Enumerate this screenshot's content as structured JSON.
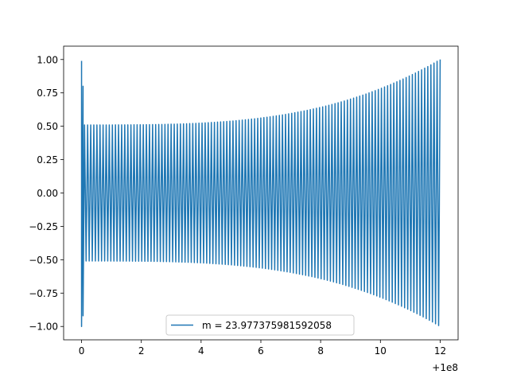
{
  "chart_data": {
    "type": "line",
    "x_offset_label": "+1e8",
    "xlim": [
      -0.6,
      12.6
    ],
    "ylim": [
      -1.1,
      1.1
    ],
    "x_ticks": [
      0,
      2,
      4,
      6,
      8,
      10,
      12
    ],
    "x_tick_labels": [
      "0",
      "2",
      "4",
      "6",
      "8",
      "10",
      "12"
    ],
    "y_ticks": [
      -1.0,
      -0.75,
      -0.5,
      -0.25,
      0.0,
      0.25,
      0.5,
      0.75,
      1.0
    ],
    "y_tick_labels": [
      "−1.00",
      "−0.75",
      "−0.50",
      "−0.25",
      "0.00",
      "0.25",
      "0.50",
      "0.75",
      "1.00"
    ],
    "grid": false,
    "legend_position": "lower center",
    "series": [
      {
        "name": "m = 23.977375981592058",
        "color": "#1f77b4",
        "start_amplitude": 0.51,
        "end_amplitude": 1.0,
        "cycles": 230,
        "initial_spike": [
          {
            "x": 0.0,
            "y": 0.99
          },
          {
            "x": 0.0,
            "y": -1.0
          },
          {
            "x": 0.05,
            "y": 0.8
          },
          {
            "x": 0.05,
            "y": -0.92
          }
        ]
      }
    ]
  }
}
